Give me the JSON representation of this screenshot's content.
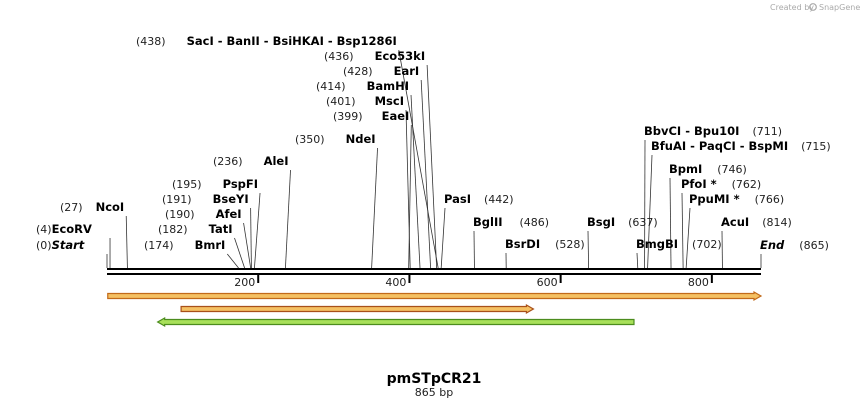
{
  "credit": {
    "prefix": "Created by",
    "brand": "SnapGene"
  },
  "sequence": {
    "name": "pmSTpCR21",
    "length_label": "865 bp",
    "length": 865
  },
  "ruler": {
    "ticks": [
      200,
      400,
      600,
      800
    ]
  },
  "sites": [
    {
      "id": "start",
      "pos": 0,
      "pos_label": "(0)",
      "names": [
        "Start"
      ],
      "italic": true
    },
    {
      "id": "ecorv",
      "pos": 4,
      "pos_label": "(4)",
      "names": [
        "EcoRV"
      ]
    },
    {
      "id": "ncoi",
      "pos": 27,
      "pos_label": "(27)",
      "names": [
        "NcoI"
      ]
    },
    {
      "id": "bmri",
      "pos": 174,
      "pos_label": "(174)",
      "names": [
        "BmrI"
      ]
    },
    {
      "id": "tati",
      "pos": 182,
      "pos_label": "(182)",
      "names": [
        "TatI"
      ]
    },
    {
      "id": "afei",
      "pos": 190,
      "pos_label": "(190)",
      "names": [
        "AfeI"
      ]
    },
    {
      "id": "bseyi",
      "pos": 191,
      "pos_label": "(191)",
      "names": [
        "BseYI"
      ]
    },
    {
      "id": "pspfi",
      "pos": 195,
      "pos_label": "(195)",
      "names": [
        "PspFI"
      ]
    },
    {
      "id": "alei",
      "pos": 236,
      "pos_label": "(236)",
      "names": [
        "AleI"
      ]
    },
    {
      "id": "ndei",
      "pos": 350,
      "pos_label": "(350)",
      "names": [
        "NdeI"
      ]
    },
    {
      "id": "eaei",
      "pos": 399,
      "pos_label": "(399)",
      "names": [
        "EaeI"
      ]
    },
    {
      "id": "msci",
      "pos": 401,
      "pos_label": "(401)",
      "names": [
        "MscI"
      ]
    },
    {
      "id": "bamhi",
      "pos": 414,
      "pos_label": "(414)",
      "names": [
        "BamHI"
      ]
    },
    {
      "id": "eari",
      "pos": 428,
      "pos_label": "(428)",
      "names": [
        "EarI"
      ]
    },
    {
      "id": "eco53ki",
      "pos": 436,
      "pos_label": "(436)",
      "names": [
        "Eco53kI"
      ]
    },
    {
      "id": "saci",
      "pos": 438,
      "pos_label": "(438)",
      "names": [
        "SacI",
        "BanII",
        "BsiHKAI",
        "Bsp1286I"
      ]
    },
    {
      "id": "pasi",
      "pos": 442,
      "pos_label": "(442)",
      "names": [
        "PasI"
      ]
    },
    {
      "id": "bglii",
      "pos": 486,
      "pos_label": "(486)",
      "names": [
        "BglII"
      ]
    },
    {
      "id": "bsrdi",
      "pos": 528,
      "pos_label": "(528)",
      "names": [
        "BsrDI"
      ]
    },
    {
      "id": "bsgi",
      "pos": 637,
      "pos_label": "(637)",
      "names": [
        "BsgI"
      ]
    },
    {
      "id": "bmgbi",
      "pos": 702,
      "pos_label": "(702)",
      "names": [
        "BmgBI"
      ]
    },
    {
      "id": "bbvci",
      "pos": 711,
      "pos_label": "(711)",
      "names": [
        "BbvCI",
        "Bpu10I"
      ]
    },
    {
      "id": "bfuai",
      "pos": 715,
      "pos_label": "(715)",
      "names": [
        "BfuAI",
        "PaqCI",
        "BspMI"
      ]
    },
    {
      "id": "bpmi",
      "pos": 746,
      "pos_label": "(746)",
      "names": [
        "BpmI"
      ]
    },
    {
      "id": "pfoi",
      "pos": 762,
      "pos_label": "(762)",
      "names": [
        "PfoI *"
      ]
    },
    {
      "id": "ppumi",
      "pos": 766,
      "pos_label": "(766)",
      "names": [
        "PpuMI *"
      ]
    },
    {
      "id": "acui",
      "pos": 814,
      "pos_label": "(814)",
      "names": [
        "AcuI"
      ]
    },
    {
      "id": "end",
      "pos": 865,
      "pos_label": "(865)",
      "names": [
        "End"
      ],
      "italic": true
    }
  ],
  "features": [
    {
      "id": "feature-1",
      "start": 1,
      "end": 865,
      "direction": "forward",
      "color": "#f5c163",
      "edge": "#c26a1a"
    },
    {
      "id": "feature-2",
      "start": 98,
      "end": 564,
      "direction": "forward",
      "color": "#f5c163",
      "edge": "#a8501a"
    },
    {
      "id": "feature-3",
      "start": 67,
      "end": 697,
      "direction": "reverse",
      "color": "#a8e05a",
      "edge": "#4c8c1e"
    }
  ]
}
